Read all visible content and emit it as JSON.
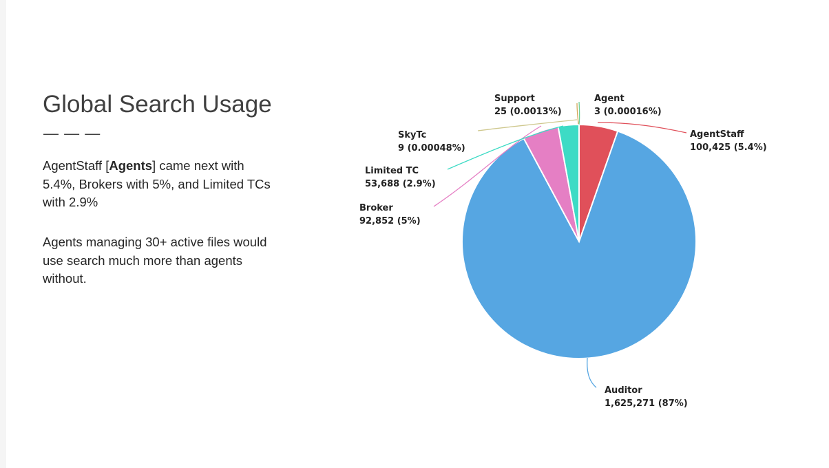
{
  "slide": {
    "title": "Global Search Usage",
    "divider": "— — —",
    "paragraph1": {
      "before": "AgentStaff [",
      "bold": "Agents",
      "after": "] came next with 5.4%, Brokers with 5%, and Limited TCs with 2.9%"
    },
    "paragraph2": "Agents managing 30+ active files would use search much more than agents without."
  },
  "chart_data": {
    "type": "pie",
    "title": "",
    "slices": [
      {
        "name": "Agent",
        "value": 3,
        "value_label": "3",
        "pct_label": "0.00016%",
        "color": "#6fcf97"
      },
      {
        "name": "AgentStaff",
        "value": 100425,
        "value_label": "100,425",
        "pct_label": "5.4%",
        "color": "#e0505a"
      },
      {
        "name": "Auditor",
        "value": 1625271,
        "value_label": "1,625,271",
        "pct_label": "87%",
        "color": "#56a6e2"
      },
      {
        "name": "Broker",
        "value": 92852,
        "value_label": "92,852",
        "pct_label": "5%",
        "color": "#e57fc4"
      },
      {
        "name": "Limited TC",
        "value": 53688,
        "value_label": "53,688",
        "pct_label": "2.9%",
        "color": "#3ddbc5"
      },
      {
        "name": "SkyTc",
        "value": 9,
        "value_label": "9",
        "pct_label": "0.00048%",
        "color": "#cfc88e"
      },
      {
        "name": "Support",
        "value": 25,
        "value_label": "25",
        "pct_label": "0.0013%",
        "color": "#d4a85a"
      }
    ]
  }
}
